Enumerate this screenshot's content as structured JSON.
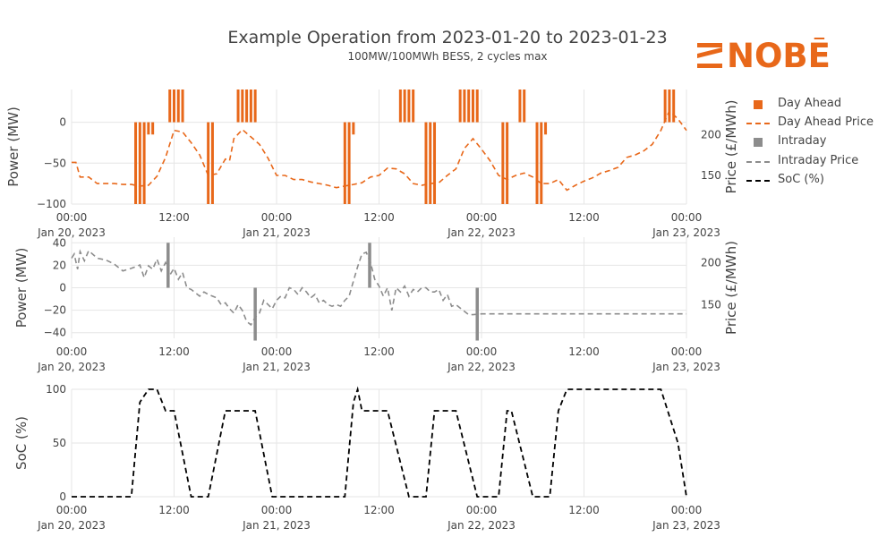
{
  "title": "Example Operation from 2023-01-20 to 2023-01-23",
  "subtitle": "100MW/100MWh BESS, 2 cycles max",
  "logo": {
    "text": "NOBĒ",
    "color": "#e8681a"
  },
  "colors": {
    "day_ahead": "#e8681a",
    "intraday": "#8c8c8c",
    "soc": "#000000",
    "grid": "#e6e6e6"
  },
  "legend": [
    {
      "label": "Day Ahead",
      "style": "square",
      "color": "#e8681a"
    },
    {
      "label": "Day Ahead Price",
      "style": "dash",
      "color": "#e8681a"
    },
    {
      "label": "Intraday",
      "style": "square",
      "color": "#8c8c8c"
    },
    {
      "label": "Intraday Price",
      "style": "dash",
      "color": "#8c8c8c"
    },
    {
      "label": "SoC (%)",
      "style": "dash",
      "color": "#000000"
    }
  ],
  "chart_data": [
    {
      "type": "bar",
      "name": "day_ahead_panel",
      "ylabel": "Power (MW)",
      "y2label": "Price (£/MWh)",
      "ylim": [
        -100,
        40
      ],
      "y2lim": [
        115,
        255
      ],
      "yticks": [
        0,
        -50,
        -100
      ],
      "y2ticks": [
        200,
        150
      ],
      "xticks": [
        {
          "h": 0,
          "label": "00:00",
          "sub": "Jan 20, 2023"
        },
        {
          "h": 12,
          "label": "12:00",
          "sub": ""
        },
        {
          "h": 24,
          "label": "00:00",
          "sub": "Jan 21, 2023"
        },
        {
          "h": 36,
          "label": "12:00",
          "sub": ""
        },
        {
          "h": 48,
          "label": "00:00",
          "sub": "Jan 22, 2023"
        },
        {
          "h": 60,
          "label": "12:00",
          "sub": ""
        },
        {
          "h": 72,
          "label": "00:00",
          "sub": "Jan 23, 2023"
        }
      ],
      "xlim": [
        0,
        72
      ],
      "bars": [
        {
          "h": 7.5,
          "v": -100
        },
        {
          "h": 8.0,
          "v": -100
        },
        {
          "h": 8.5,
          "v": -100
        },
        {
          "h": 9.0,
          "v": -15
        },
        {
          "h": 9.5,
          "v": -15
        },
        {
          "h": 11.5,
          "v": 40
        },
        {
          "h": 12.0,
          "v": 40
        },
        {
          "h": 12.5,
          "v": 40
        },
        {
          "h": 13.0,
          "v": 40
        },
        {
          "h": 16.0,
          "v": -100
        },
        {
          "h": 16.5,
          "v": -100
        },
        {
          "h": 19.5,
          "v": 40
        },
        {
          "h": 20.0,
          "v": 40
        },
        {
          "h": 20.5,
          "v": 40
        },
        {
          "h": 21.0,
          "v": 40
        },
        {
          "h": 21.5,
          "v": 40
        },
        {
          "h": 32.0,
          "v": -100
        },
        {
          "h": 32.5,
          "v": -100
        },
        {
          "h": 33.0,
          "v": -15
        },
        {
          "h": 38.5,
          "v": 40
        },
        {
          "h": 39.0,
          "v": 40
        },
        {
          "h": 39.5,
          "v": 40
        },
        {
          "h": 40.0,
          "v": 40
        },
        {
          "h": 41.5,
          "v": -100
        },
        {
          "h": 42.0,
          "v": -100
        },
        {
          "h": 42.5,
          "v": -100
        },
        {
          "h": 45.5,
          "v": 40
        },
        {
          "h": 46.0,
          "v": 40
        },
        {
          "h": 46.5,
          "v": 40
        },
        {
          "h": 47.0,
          "v": 40
        },
        {
          "h": 47.5,
          "v": 40
        },
        {
          "h": 50.5,
          "v": -100
        },
        {
          "h": 51.0,
          "v": -100
        },
        {
          "h": 52.5,
          "v": 40
        },
        {
          "h": 53.0,
          "v": 40
        },
        {
          "h": 54.5,
          "v": -100
        },
        {
          "h": 55.0,
          "v": -100
        },
        {
          "h": 55.5,
          "v": -15
        },
        {
          "h": 69.5,
          "v": 40
        },
        {
          "h": 70.0,
          "v": 40
        },
        {
          "h": 70.5,
          "v": 40
        }
      ],
      "price": [
        [
          0,
          166
        ],
        [
          0.5,
          166
        ],
        [
          1,
          148
        ],
        [
          2,
          148
        ],
        [
          3,
          140
        ],
        [
          4,
          140
        ],
        [
          5,
          140
        ],
        [
          6,
          139
        ],
        [
          7,
          139
        ],
        [
          8,
          137
        ],
        [
          9,
          138
        ],
        [
          10,
          149
        ],
        [
          11,
          172
        ],
        [
          12,
          205
        ],
        [
          13,
          203
        ],
        [
          14,
          190
        ],
        [
          15,
          175
        ],
        [
          16,
          150
        ],
        [
          17,
          152
        ],
        [
          18,
          170
        ],
        [
          18.5,
          168
        ],
        [
          19,
          195
        ],
        [
          20,
          206
        ],
        [
          21,
          197
        ],
        [
          22,
          188
        ],
        [
          23,
          171
        ],
        [
          24,
          150
        ],
        [
          25,
          150
        ],
        [
          26,
          145
        ],
        [
          27,
          145
        ],
        [
          28,
          142
        ],
        [
          29,
          140
        ],
        [
          30,
          138
        ],
        [
          31,
          135
        ],
        [
          32,
          137
        ],
        [
          33,
          139
        ],
        [
          34,
          141
        ],
        [
          35,
          148
        ],
        [
          36,
          150
        ],
        [
          37,
          159
        ],
        [
          38,
          158
        ],
        [
          39,
          152
        ],
        [
          40,
          140
        ],
        [
          41,
          138
        ],
        [
          42,
          140
        ],
        [
          43,
          141
        ],
        [
          44,
          150
        ],
        [
          45,
          158
        ],
        [
          46,
          183
        ],
        [
          47,
          195
        ],
        [
          48,
          182
        ],
        [
          49,
          168
        ],
        [
          50,
          150
        ],
        [
          51,
          145
        ],
        [
          52,
          150
        ],
        [
          53,
          153
        ],
        [
          54,
          148
        ],
        [
          55,
          140
        ],
        [
          56,
          140
        ],
        [
          57,
          145
        ],
        [
          58,
          132
        ],
        [
          59,
          138
        ],
        [
          60,
          143
        ],
        [
          61,
          147
        ],
        [
          62,
          153
        ],
        [
          63,
          156
        ],
        [
          64,
          160
        ],
        [
          65,
          172
        ],
        [
          66,
          175
        ],
        [
          67,
          180
        ],
        [
          68,
          188
        ],
        [
          69,
          205
        ],
        [
          70,
          229
        ],
        [
          71,
          219
        ],
        [
          72,
          205
        ]
      ]
    },
    {
      "type": "bar",
      "name": "intraday_panel",
      "ylabel": "Power (MW)",
      "y2label": "Price (£/MWh)",
      "ylim": [
        -45,
        45
      ],
      "y2lim": [
        110,
        230
      ],
      "yticks": [
        40,
        20,
        0,
        -20,
        -40
      ],
      "y2ticks": [
        200,
        150
      ],
      "xlim": [
        0,
        72
      ],
      "bars": [
        {
          "h": 11.3,
          "v": 40
        },
        {
          "h": 21.5,
          "v": -47
        },
        {
          "h": 34.9,
          "v": 40
        },
        {
          "h": 47.5,
          "v": -47
        }
      ],
      "price": [
        [
          0,
          205
        ],
        [
          0.3,
          210
        ],
        [
          0.7,
          192
        ],
        [
          1,
          213
        ],
        [
          1.5,
          202
        ],
        [
          2,
          214
        ],
        [
          3,
          205
        ],
        [
          4,
          203
        ],
        [
          5,
          198
        ],
        [
          6,
          190
        ],
        [
          7,
          193
        ],
        [
          8,
          197
        ],
        [
          8.5,
          182
        ],
        [
          9,
          196
        ],
        [
          9.5,
          192
        ],
        [
          10,
          204
        ],
        [
          10.5,
          190
        ],
        [
          11,
          200
        ],
        [
          11.5,
          185
        ],
        [
          12,
          193
        ],
        [
          12.5,
          180
        ],
        [
          13,
          188
        ],
        [
          13.5,
          170
        ],
        [
          14,
          168
        ],
        [
          15,
          160
        ],
        [
          15.5,
          165
        ],
        [
          16,
          162
        ],
        [
          17,
          158
        ],
        [
          17.5,
          150
        ],
        [
          18,
          152
        ],
        [
          18.5,
          145
        ],
        [
          19,
          140
        ],
        [
          19.5,
          150
        ],
        [
          20,
          143
        ],
        [
          20.5,
          130
        ],
        [
          21,
          126
        ],
        [
          21.5,
          135
        ],
        [
          22,
          140
        ],
        [
          22.5,
          155
        ],
        [
          23,
          150
        ],
        [
          23.5,
          145
        ],
        [
          24,
          155
        ],
        [
          24.5,
          160
        ],
        [
          25,
          158
        ],
        [
          25.5,
          170
        ],
        [
          26,
          168
        ],
        [
          26.5,
          162
        ],
        [
          27,
          170
        ],
        [
          27.5,
          165
        ],
        [
          28,
          158
        ],
        [
          28.5,
          162
        ],
        [
          29,
          152
        ],
        [
          29.5,
          155
        ],
        [
          30,
          150
        ],
        [
          30.5,
          148
        ],
        [
          31,
          150
        ],
        [
          31.5,
          148
        ],
        [
          32,
          155
        ],
        [
          32.5,
          160
        ],
        [
          33,
          178
        ],
        [
          33.5,
          195
        ],
        [
          34,
          210
        ],
        [
          34.5,
          212
        ],
        [
          35,
          200
        ],
        [
          35.5,
          180
        ],
        [
          36,
          172
        ],
        [
          36.5,
          160
        ],
        [
          37,
          170
        ],
        [
          37.5,
          143
        ],
        [
          38,
          170
        ],
        [
          38.5,
          165
        ],
        [
          39,
          172
        ],
        [
          39.5,
          160
        ],
        [
          40,
          168
        ],
        [
          40.5,
          165
        ],
        [
          41,
          170
        ],
        [
          41.5,
          170
        ],
        [
          42,
          165
        ],
        [
          42.5,
          165
        ],
        [
          43,
          168
        ],
        [
          43.5,
          155
        ],
        [
          44,
          162
        ],
        [
          44.5,
          148
        ],
        [
          45,
          150
        ],
        [
          45.5,
          146
        ],
        [
          46,
          142
        ],
        [
          46.5,
          138
        ],
        [
          47,
          138
        ],
        [
          48,
          139
        ],
        [
          72,
          139
        ]
      ]
    },
    {
      "type": "line",
      "name": "soc_panel",
      "ylabel": "SoC (%)",
      "ylim": [
        0,
        100
      ],
      "yticks": [
        100,
        50,
        0
      ],
      "xlim": [
        0,
        72
      ],
      "soc": [
        [
          0,
          0
        ],
        [
          7,
          0
        ],
        [
          8,
          88
        ],
        [
          9,
          100
        ],
        [
          10,
          100
        ],
        [
          11,
          80
        ],
        [
          12,
          80
        ],
        [
          14,
          0
        ],
        [
          16,
          0
        ],
        [
          18,
          80
        ],
        [
          21.5,
          80
        ],
        [
          23.5,
          0
        ],
        [
          32,
          0
        ],
        [
          33,
          88
        ],
        [
          33.5,
          100
        ],
        [
          34,
          80
        ],
        [
          37,
          80
        ],
        [
          39.5,
          0
        ],
        [
          41.5,
          0
        ],
        [
          42.5,
          80
        ],
        [
          45,
          80
        ],
        [
          47.5,
          0
        ],
        [
          50,
          0
        ],
        [
          51,
          80
        ],
        [
          51.5,
          80
        ],
        [
          54,
          0
        ],
        [
          56,
          0
        ],
        [
          57,
          80
        ],
        [
          58,
          100
        ],
        [
          69,
          100
        ],
        [
          71,
          50
        ],
        [
          72,
          0
        ]
      ]
    }
  ]
}
